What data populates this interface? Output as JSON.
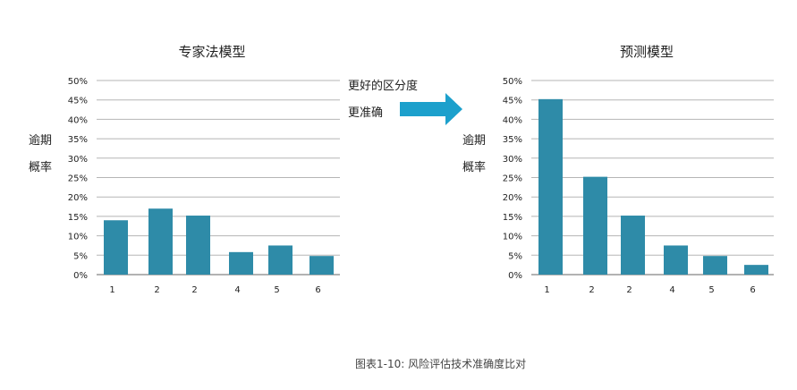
{
  "arrow_text": [
    "更好的区分度",
    "更准确"
  ],
  "arrow_color": "#1ca0cc",
  "bar_color": "#2e8ba8",
  "caption": "图表1-10: 风险评估技术准确度比对",
  "chart_data": [
    {
      "type": "bar",
      "title": "专家法模型",
      "ylabel": [
        "逾期",
        "概率"
      ],
      "categories": [
        "1",
        "2",
        "2",
        "4",
        "5",
        "6"
      ],
      "values": [
        14,
        17,
        15.2,
        5.8,
        7.5,
        4.8
      ],
      "yticks": [
        "0%",
        "5%",
        "10%",
        "15%",
        "20%",
        "25%",
        "30%",
        "35%",
        "40%",
        "45%",
        "50%"
      ],
      "ylim": [
        0,
        50
      ],
      "grid": true
    },
    {
      "type": "bar",
      "title": "预测模型",
      "ylabel": [
        "逾期",
        "概率"
      ],
      "categories": [
        "1",
        "2",
        "2",
        "4",
        "5",
        "6"
      ],
      "values": [
        45.2,
        25.2,
        15.2,
        7.5,
        4.8,
        2.5
      ],
      "yticks": [
        "0%",
        "5%",
        "10%",
        "15%",
        "20%",
        "25%",
        "30%",
        "35%",
        "40%",
        "45%",
        "50%"
      ],
      "ylim": [
        0,
        50
      ],
      "grid": true
    }
  ]
}
